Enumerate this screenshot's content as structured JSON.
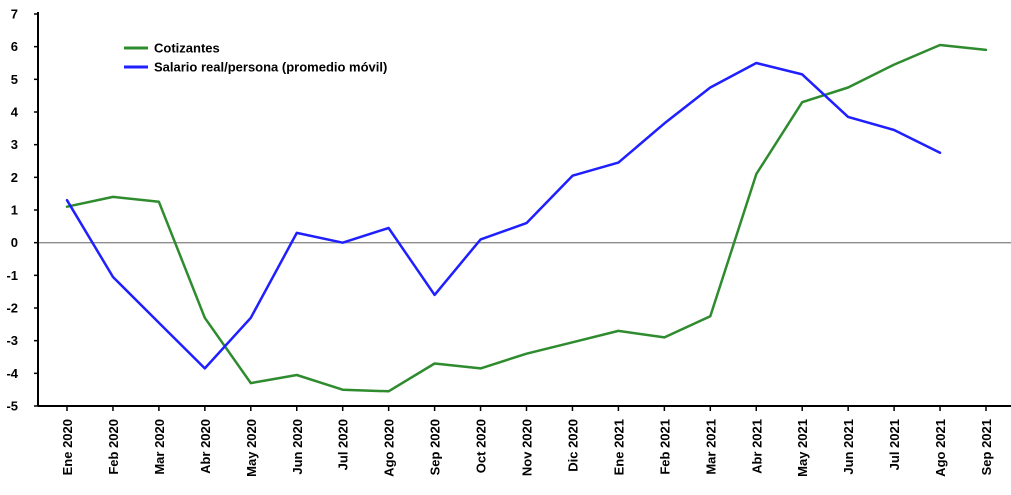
{
  "chart_data": {
    "type": "line",
    "categories": [
      "Ene 2020",
      "Feb 2020",
      "Mar 2020",
      "Abr 2020",
      "May 2020",
      "Jun 2020",
      "Jul 2020",
      "Ago 2020",
      "Sep 2020",
      "Oct 2020",
      "Nov 2020",
      "Dic 2020",
      "Ene 2021",
      "Feb 2021",
      "Mar 2021",
      "Abr 2021",
      "May 2021",
      "Jun 2021",
      "Jul 2021",
      "Ago 2021",
      "Sep 2021"
    ],
    "series": [
      {
        "name": "Cotizantes",
        "color": "#2e8b2e",
        "values": [
          1.1,
          1.4,
          1.25,
          -2.3,
          -4.3,
          -4.05,
          -4.5,
          -4.55,
          -3.7,
          -3.85,
          -3.4,
          -3.05,
          -2.7,
          -2.9,
          -2.25,
          2.1,
          4.3,
          4.75,
          5.45,
          6.05,
          5.9
        ]
      },
      {
        "name": "Salario real/persona (promedio móvil)",
        "color": "#1f1fff",
        "values": [
          1.3,
          -1.05,
          -2.45,
          -3.85,
          -2.3,
          0.3,
          0.0,
          0.45,
          -1.6,
          0.1,
          0.6,
          2.05,
          2.45,
          3.65,
          4.75,
          5.5,
          5.15,
          3.85,
          3.45,
          2.75,
          null
        ]
      }
    ],
    "ylim": [
      -5,
      7
    ],
    "yticks": [
      -5,
      -4,
      -3,
      -2,
      -1,
      0,
      1,
      2,
      3,
      4,
      5,
      6,
      7
    ],
    "zero_line": true,
    "grid": false,
    "legend_position": "top-left"
  }
}
